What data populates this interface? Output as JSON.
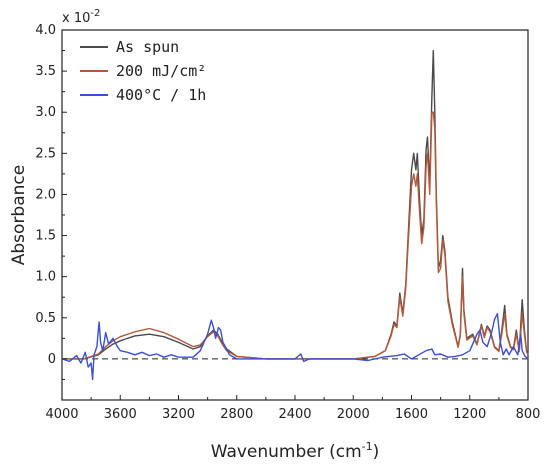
{
  "chart_data": {
    "type": "line",
    "xlabel": "Wavenumber (cm",
    "xlabel_sup": "-1",
    "xlabel_end": ")",
    "ylabel": "Absorbance",
    "y_exponent_label": "x 10",
    "y_exponent_power": "-2",
    "xlim": [
      4000,
      800
    ],
    "x_reversed": true,
    "ylim": [
      -0.5,
      4.0
    ],
    "x_ticks": [
      4000,
      3600,
      3200,
      2800,
      2400,
      2000,
      1600,
      1200,
      800
    ],
    "x_tick_labels": [
      "4000",
      "3600",
      "3200",
      "2800",
      "2400",
      "2000",
      "1600",
      "1200",
      "800"
    ],
    "y_ticks": [
      0,
      0.5,
      1.0,
      1.5,
      2.0,
      2.5,
      3.0,
      3.5,
      4.0
    ],
    "y_tick_labels": [
      "0",
      "0.5",
      "1.0",
      "1.5",
      "2.0",
      "2.5",
      "3.0",
      "3.5",
      "4.0"
    ],
    "baseline": 0,
    "legend_position": "top-left",
    "series": [
      {
        "name": "As spun",
        "color": "#4a4a4a",
        "points": [
          [
            4000,
            0.0
          ],
          [
            3850,
            0.0
          ],
          [
            3750,
            0.05
          ],
          [
            3700,
            0.12
          ],
          [
            3650,
            0.18
          ],
          [
            3600,
            0.22
          ],
          [
            3500,
            0.28
          ],
          [
            3400,
            0.3
          ],
          [
            3300,
            0.27
          ],
          [
            3200,
            0.2
          ],
          [
            3100,
            0.12
          ],
          [
            3050,
            0.15
          ],
          [
            3000,
            0.28
          ],
          [
            2960,
            0.35
          ],
          [
            2930,
            0.3
          ],
          [
            2900,
            0.2
          ],
          [
            2870,
            0.12
          ],
          [
            2800,
            0.03
          ],
          [
            2600,
            0.0
          ],
          [
            2400,
            0.0
          ],
          [
            2200,
            0.0
          ],
          [
            2000,
            0.0
          ],
          [
            1850,
            0.03
          ],
          [
            1780,
            0.1
          ],
          [
            1740,
            0.3
          ],
          [
            1720,
            0.45
          ],
          [
            1700,
            0.4
          ],
          [
            1680,
            0.8
          ],
          [
            1660,
            0.55
          ],
          [
            1640,
            0.9
          ],
          [
            1620,
            1.6
          ],
          [
            1600,
            2.3
          ],
          [
            1585,
            2.5
          ],
          [
            1570,
            2.3
          ],
          [
            1560,
            2.5
          ],
          [
            1545,
            1.95
          ],
          [
            1530,
            1.5
          ],
          [
            1515,
            1.7
          ],
          [
            1500,
            2.55
          ],
          [
            1490,
            2.7
          ],
          [
            1475,
            2.1
          ],
          [
            1460,
            3.2
          ],
          [
            1450,
            3.75
          ],
          [
            1440,
            3.0
          ],
          [
            1430,
            2.0
          ],
          [
            1415,
            1.1
          ],
          [
            1400,
            1.2
          ],
          [
            1385,
            1.5
          ],
          [
            1370,
            1.3
          ],
          [
            1350,
            0.75
          ],
          [
            1320,
            0.45
          ],
          [
            1300,
            0.3
          ],
          [
            1280,
            0.15
          ],
          [
            1265,
            0.3
          ],
          [
            1250,
            1.1
          ],
          [
            1240,
            0.6
          ],
          [
            1220,
            0.25
          ],
          [
            1180,
            0.3
          ],
          [
            1150,
            0.18
          ],
          [
            1120,
            0.42
          ],
          [
            1100,
            0.28
          ],
          [
            1080,
            0.4
          ],
          [
            1060,
            0.35
          ],
          [
            1030,
            0.15
          ],
          [
            1000,
            0.1
          ],
          [
            980,
            0.35
          ],
          [
            960,
            0.65
          ],
          [
            945,
            0.3
          ],
          [
            920,
            0.15
          ],
          [
            900,
            0.12
          ],
          [
            880,
            0.35
          ],
          [
            860,
            0.1
          ],
          [
            840,
            0.72
          ],
          [
            825,
            0.35
          ],
          [
            810,
            0.1
          ],
          [
            800,
            0.05
          ]
        ]
      },
      {
        "name": "200 mJ/cm²",
        "color": "#b5593a",
        "points": [
          [
            4000,
            0.0
          ],
          [
            3850,
            0.0
          ],
          [
            3750,
            0.06
          ],
          [
            3700,
            0.15
          ],
          [
            3650,
            0.22
          ],
          [
            3600,
            0.27
          ],
          [
            3500,
            0.33
          ],
          [
            3400,
            0.37
          ],
          [
            3300,
            0.32
          ],
          [
            3200,
            0.24
          ],
          [
            3100,
            0.15
          ],
          [
            3050,
            0.17
          ],
          [
            3000,
            0.27
          ],
          [
            2960,
            0.33
          ],
          [
            2930,
            0.28
          ],
          [
            2900,
            0.18
          ],
          [
            2870,
            0.1
          ],
          [
            2800,
            0.03
          ],
          [
            2600,
            0.0
          ],
          [
            2400,
            0.0
          ],
          [
            2200,
            0.0
          ],
          [
            2000,
            0.0
          ],
          [
            1850,
            0.03
          ],
          [
            1780,
            0.1
          ],
          [
            1740,
            0.28
          ],
          [
            1720,
            0.42
          ],
          [
            1700,
            0.38
          ],
          [
            1680,
            0.75
          ],
          [
            1660,
            0.52
          ],
          [
            1640,
            0.85
          ],
          [
            1620,
            1.5
          ],
          [
            1600,
            2.1
          ],
          [
            1585,
            2.25
          ],
          [
            1570,
            2.1
          ],
          [
            1560,
            2.25
          ],
          [
            1545,
            1.8
          ],
          [
            1530,
            1.4
          ],
          [
            1515,
            1.6
          ],
          [
            1500,
            2.35
          ],
          [
            1490,
            2.5
          ],
          [
            1475,
            2.0
          ],
          [
            1460,
            3.0
          ],
          [
            1450,
            3.0
          ],
          [
            1440,
            2.8
          ],
          [
            1430,
            1.9
          ],
          [
            1415,
            1.05
          ],
          [
            1400,
            1.1
          ],
          [
            1385,
            1.45
          ],
          [
            1370,
            1.25
          ],
          [
            1350,
            0.7
          ],
          [
            1320,
            0.42
          ],
          [
            1300,
            0.28
          ],
          [
            1280,
            0.14
          ],
          [
            1265,
            0.28
          ],
          [
            1250,
            1.0
          ],
          [
            1240,
            0.55
          ],
          [
            1220,
            0.23
          ],
          [
            1180,
            0.28
          ],
          [
            1150,
            0.17
          ],
          [
            1120,
            0.4
          ],
          [
            1100,
            0.26
          ],
          [
            1080,
            0.38
          ],
          [
            1060,
            0.33
          ],
          [
            1030,
            0.14
          ],
          [
            1000,
            0.09
          ],
          [
            980,
            0.3
          ],
          [
            960,
            0.55
          ],
          [
            945,
            0.28
          ],
          [
            920,
            0.14
          ],
          [
            900,
            0.11
          ],
          [
            880,
            0.3
          ],
          [
            860,
            0.09
          ],
          [
            840,
            0.55
          ],
          [
            825,
            0.3
          ],
          [
            810,
            0.09
          ],
          [
            800,
            0.05
          ]
        ]
      },
      {
        "name": "400°C / 1h",
        "color": "#3a4fd6",
        "points": [
          [
            4000,
            0.0
          ],
          [
            3950,
            -0.03
          ],
          [
            3900,
            0.04
          ],
          [
            3870,
            -0.05
          ],
          [
            3840,
            0.08
          ],
          [
            3820,
            -0.1
          ],
          [
            3800,
            -0.05
          ],
          [
            3790,
            -0.25
          ],
          [
            3780,
            0.05
          ],
          [
            3760,
            0.15
          ],
          [
            3745,
            0.45
          ],
          [
            3735,
            0.2
          ],
          [
            3720,
            0.1
          ],
          [
            3700,
            0.32
          ],
          [
            3680,
            0.18
          ],
          [
            3650,
            0.25
          ],
          [
            3620,
            0.15
          ],
          [
            3600,
            0.1
          ],
          [
            3550,
            0.08
          ],
          [
            3500,
            0.05
          ],
          [
            3450,
            0.08
          ],
          [
            3400,
            0.04
          ],
          [
            3350,
            0.06
          ],
          [
            3300,
            0.02
          ],
          [
            3250,
            0.05
          ],
          [
            3200,
            0.02
          ],
          [
            3100,
            0.02
          ],
          [
            3050,
            0.1
          ],
          [
            3000,
            0.3
          ],
          [
            2975,
            0.47
          ],
          [
            2960,
            0.38
          ],
          [
            2945,
            0.25
          ],
          [
            2925,
            0.38
          ],
          [
            2910,
            0.35
          ],
          [
            2895,
            0.2
          ],
          [
            2870,
            0.12
          ],
          [
            2850,
            0.05
          ],
          [
            2800,
            0.0
          ],
          [
            2700,
            0.0
          ],
          [
            2600,
            0.0
          ],
          [
            2500,
            0.0
          ],
          [
            2400,
            0.0
          ],
          [
            2360,
            0.06
          ],
          [
            2340,
            -0.03
          ],
          [
            2300,
            0.0
          ],
          [
            2200,
            0.0
          ],
          [
            2000,
            0.0
          ],
          [
            1900,
            -0.02
          ],
          [
            1800,
            0.02
          ],
          [
            1700,
            0.04
          ],
          [
            1650,
            0.06
          ],
          [
            1600,
            0.0
          ],
          [
            1550,
            0.05
          ],
          [
            1500,
            0.1
          ],
          [
            1460,
            0.12
          ],
          [
            1440,
            0.05
          ],
          [
            1400,
            0.06
          ],
          [
            1350,
            0.02
          ],
          [
            1300,
            0.03
          ],
          [
            1250,
            0.05
          ],
          [
            1200,
            0.1
          ],
          [
            1150,
            0.3
          ],
          [
            1130,
            0.35
          ],
          [
            1110,
            0.2
          ],
          [
            1080,
            0.15
          ],
          [
            1050,
            0.32
          ],
          [
            1030,
            0.48
          ],
          [
            1010,
            0.55
          ],
          [
            990,
            0.2
          ],
          [
            970,
            0.05
          ],
          [
            950,
            0.12
          ],
          [
            930,
            0.05
          ],
          [
            900,
            0.15
          ],
          [
            870,
            0.05
          ],
          [
            850,
            0.3
          ],
          [
            840,
            0.1
          ],
          [
            820,
            0.03
          ],
          [
            800,
            0.0
          ]
        ]
      }
    ]
  }
}
